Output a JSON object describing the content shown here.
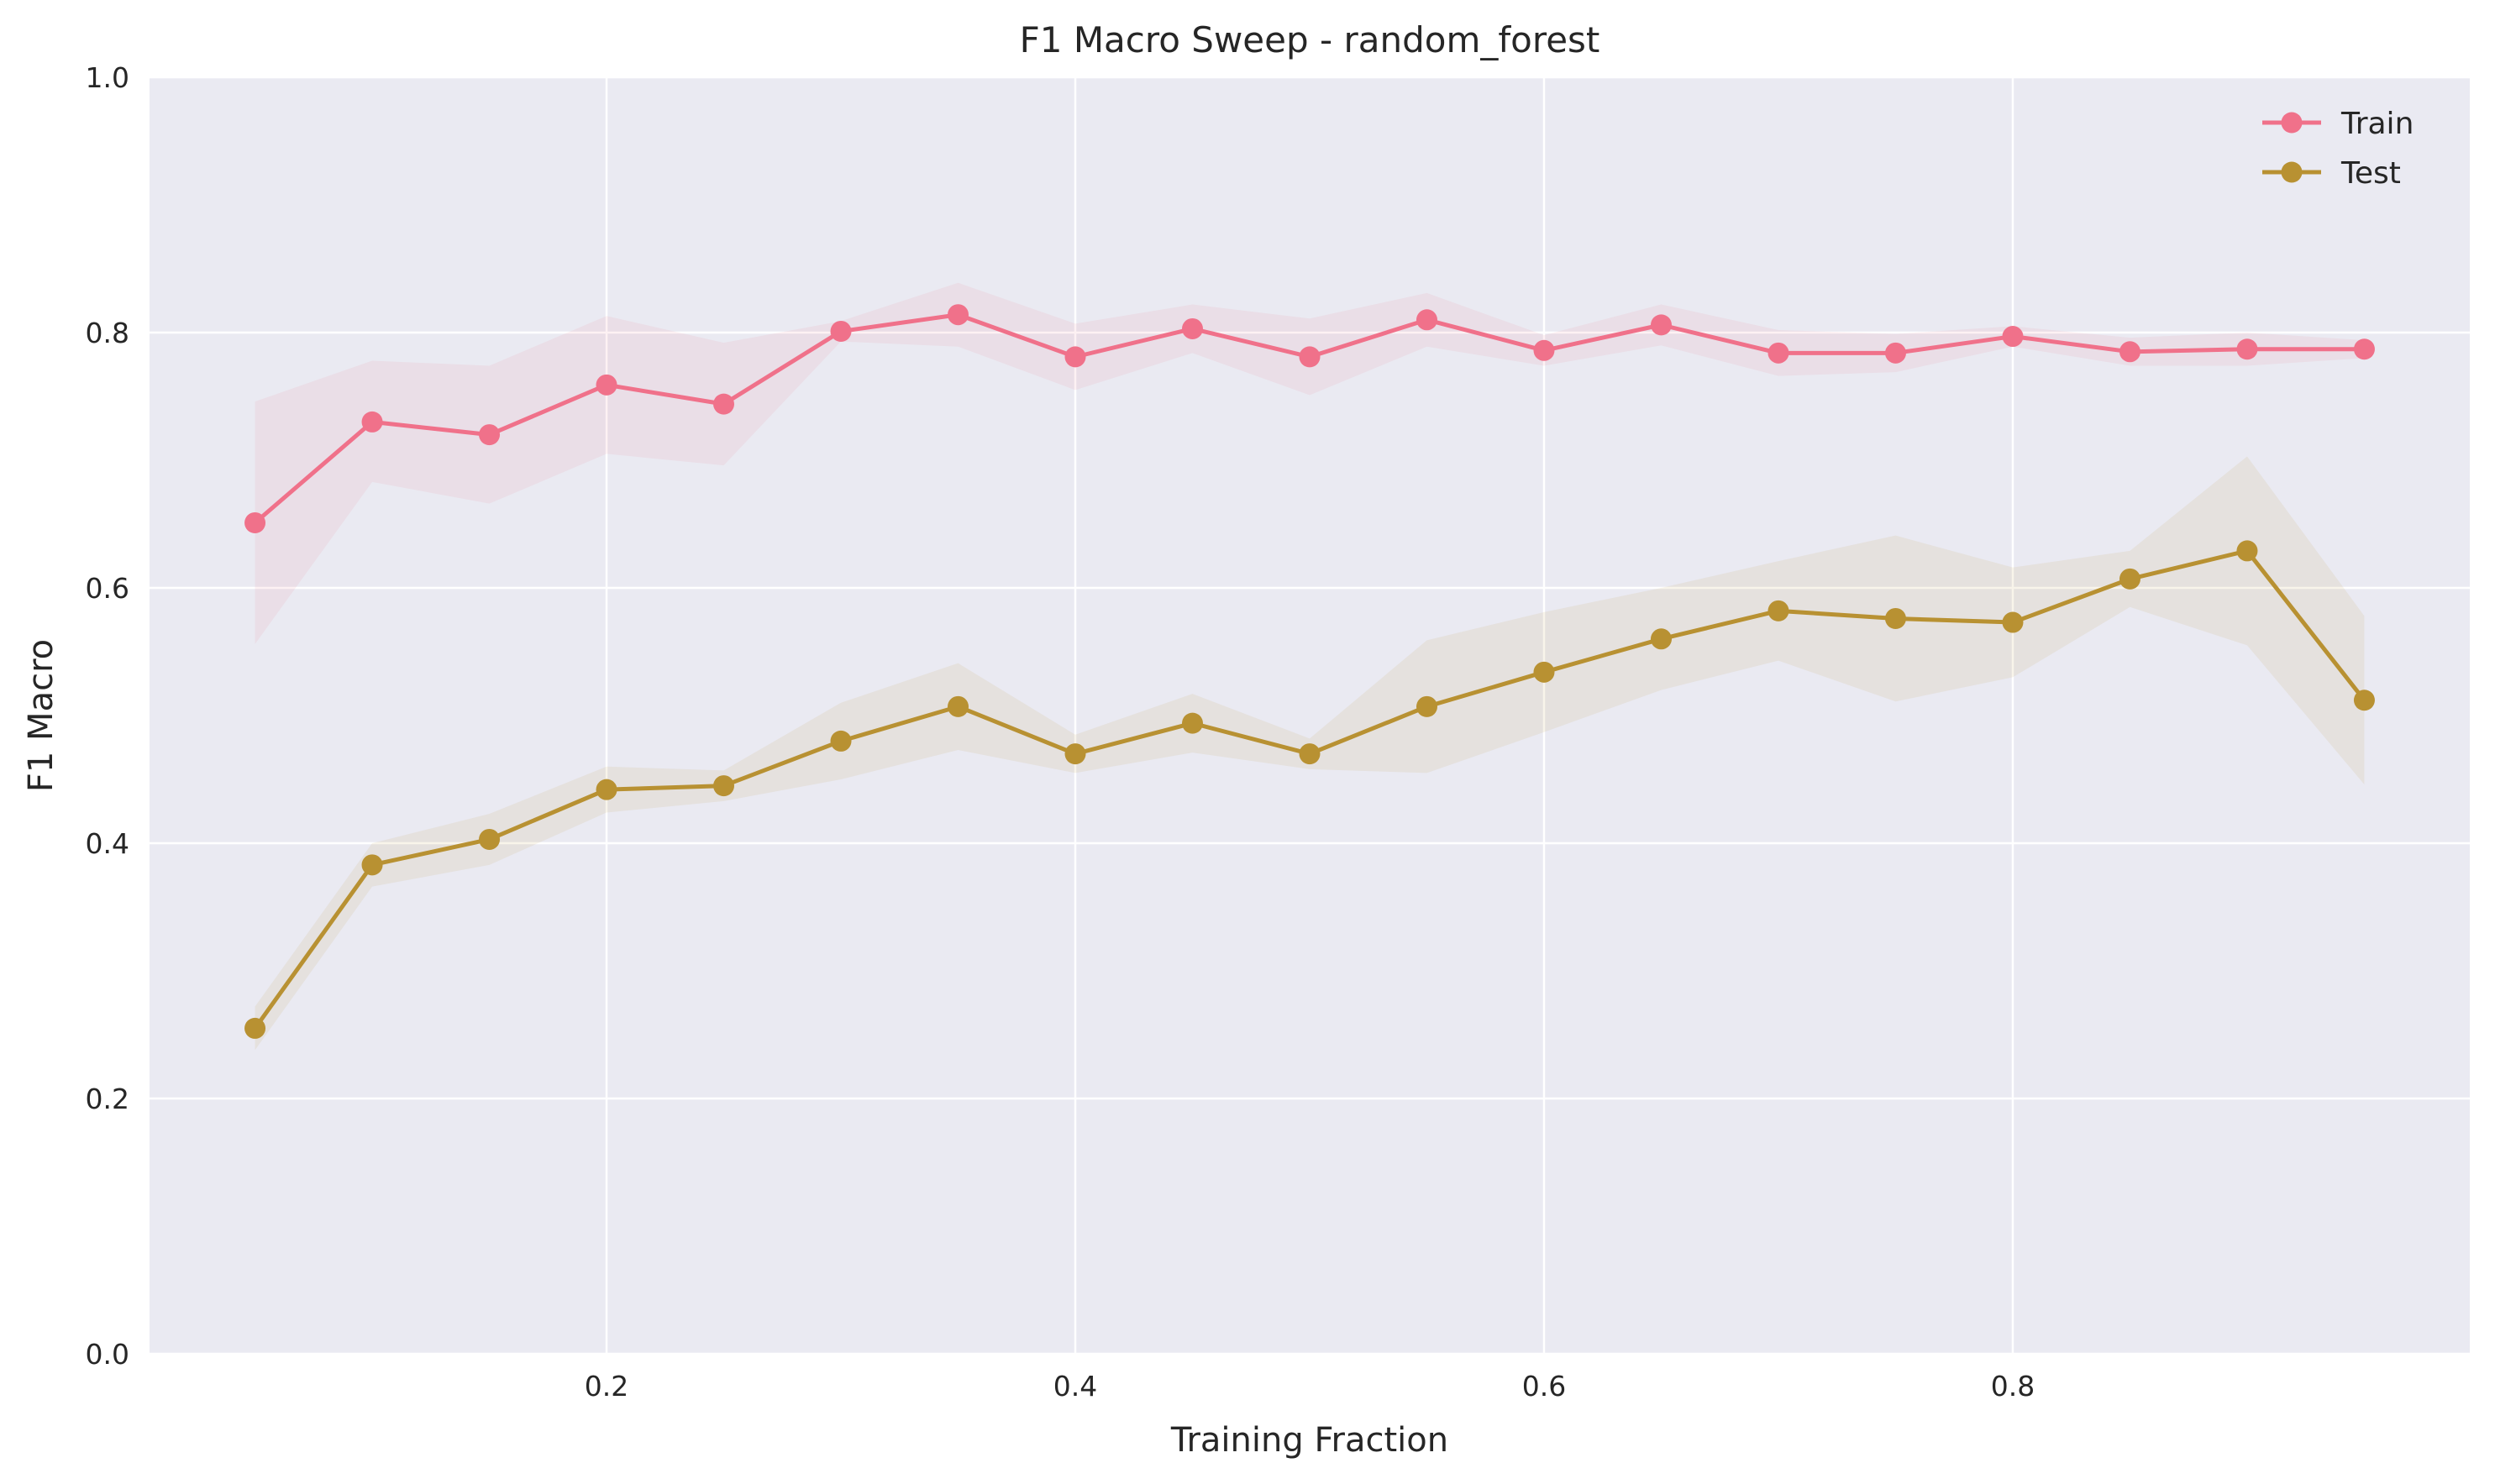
{
  "chart_data": {
    "type": "line",
    "title": "F1 Macro Sweep - random_forest",
    "xlabel": "Training Fraction",
    "ylabel": "F1 Macro",
    "xlim": [
      0.005,
      0.995
    ],
    "ylim": [
      0.0,
      1.0
    ],
    "xticks": [
      0.2,
      0.4,
      0.6,
      0.8
    ],
    "xtick_labels": [
      "0.2",
      "0.4",
      "0.6",
      "0.8"
    ],
    "yticks": [
      0.0,
      0.2,
      0.4,
      0.6,
      0.8,
      1.0
    ],
    "ytick_labels": [
      "0.0",
      "0.2",
      "0.4",
      "0.6",
      "0.8",
      "1.0"
    ],
    "grid": true,
    "legend_position": "top-right",
    "x": [
      0.05,
      0.1,
      0.15,
      0.2,
      0.25,
      0.3,
      0.35,
      0.4,
      0.45,
      0.5,
      0.55,
      0.6,
      0.65,
      0.7,
      0.75,
      0.8,
      0.85,
      0.9,
      0.95
    ],
    "series": [
      {
        "name": "Train",
        "color": "#f0718a",
        "values": [
          0.651,
          0.73,
          0.72,
          0.759,
          0.744,
          0.801,
          0.814,
          0.781,
          0.803,
          0.781,
          0.81,
          0.786,
          0.806,
          0.784,
          0.784,
          0.797,
          0.785,
          0.787,
          0.787
        ],
        "lower": [
          0.556,
          0.683,
          0.666,
          0.705,
          0.696,
          0.793,
          0.789,
          0.755,
          0.784,
          0.751,
          0.789,
          0.774,
          0.79,
          0.766,
          0.769,
          0.789,
          0.774,
          0.774,
          0.78
        ],
        "upper": [
          0.746,
          0.778,
          0.774,
          0.813,
          0.792,
          0.809,
          0.839,
          0.807,
          0.822,
          0.811,
          0.831,
          0.798,
          0.822,
          0.802,
          0.799,
          0.805,
          0.796,
          0.8,
          0.794
        ]
      },
      {
        "name": "Test",
        "color": "#b89132",
        "values": [
          0.255,
          0.383,
          0.403,
          0.442,
          0.445,
          0.48,
          0.507,
          0.47,
          0.494,
          0.47,
          0.507,
          0.534,
          0.56,
          0.582,
          0.576,
          0.573,
          0.607,
          0.629,
          0.512
        ],
        "lower": [
          0.238,
          0.366,
          0.383,
          0.424,
          0.433,
          0.45,
          0.473,
          0.455,
          0.471,
          0.458,
          0.455,
          0.487,
          0.52,
          0.543,
          0.511,
          0.53,
          0.585,
          0.555,
          0.446
        ],
        "upper": [
          0.272,
          0.4,
          0.423,
          0.46,
          0.457,
          0.51,
          0.541,
          0.485,
          0.517,
          0.482,
          0.559,
          0.581,
          0.6,
          0.621,
          0.641,
          0.616,
          0.629,
          0.703,
          0.578
        ]
      }
    ]
  }
}
